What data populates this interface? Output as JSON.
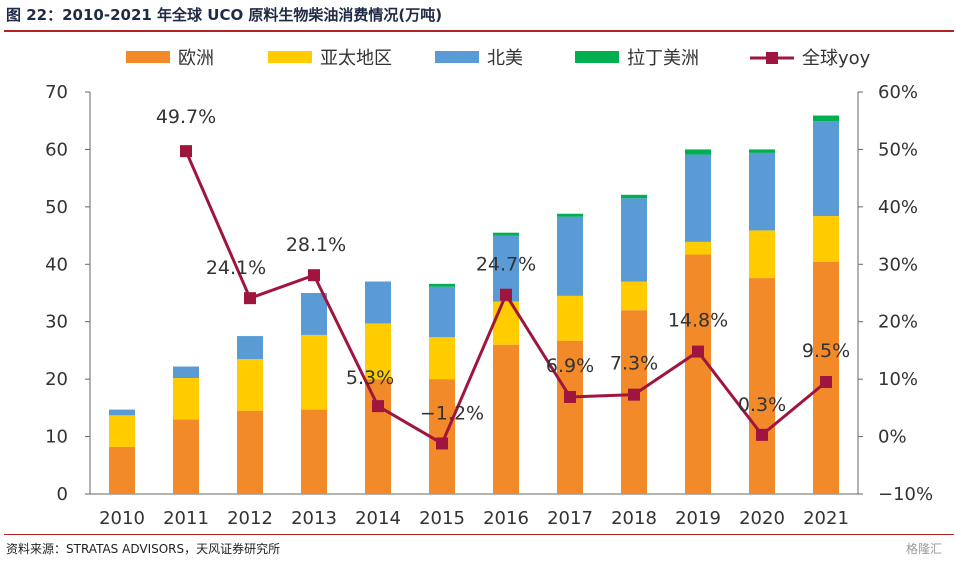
{
  "title": "图 22：2010-2021 年全球 UCO 原料生物柴油消费情况(万吨)",
  "source": "资料来源：STRATAS ADVISORS，天风证券研究所",
  "watermark": "格隆汇",
  "colors": {
    "europe": "#F28A2A",
    "asia_pacific": "#FFCC00",
    "north_america": "#5B9BD5",
    "latin_america": "#00B050",
    "yoy": "#A0153E",
    "rule": "#b22222"
  },
  "chart_data": {
    "type": "bar",
    "stacked": true,
    "categories": [
      "2010",
      "2011",
      "2012",
      "2013",
      "2014",
      "2015",
      "2016",
      "2017",
      "2018",
      "2019",
      "2020",
      "2021"
    ],
    "series": [
      {
        "name": "欧洲",
        "values": [
          8.2,
          13.0,
          14.5,
          14.7,
          20.0,
          20.0,
          26.0,
          26.7,
          32.0,
          41.7,
          37.6,
          40.4
        ]
      },
      {
        "name": "亚太地区",
        "values": [
          5.5,
          7.2,
          9.0,
          13.0,
          9.7,
          7.3,
          7.5,
          7.8,
          5.0,
          2.2,
          8.3,
          8.0
        ]
      },
      {
        "name": "北美",
        "values": [
          1.0,
          2.0,
          4.0,
          7.3,
          7.3,
          8.8,
          11.5,
          13.8,
          14.5,
          15.2,
          13.5,
          16.5
        ]
      },
      {
        "name": "拉丁美洲",
        "values": [
          0.0,
          0.0,
          0.0,
          0.0,
          0.0,
          0.5,
          0.5,
          0.5,
          0.6,
          0.9,
          0.6,
          1.0
        ]
      }
    ],
    "line_series": {
      "name": "全球yoy",
      "values": [
        null,
        49.7,
        24.1,
        28.1,
        5.3,
        -1.2,
        24.7,
        6.9,
        7.3,
        14.8,
        0.3,
        9.5
      ],
      "labels": [
        "",
        "49.7%",
        "24.1%",
        "28.1%",
        "5.3%",
        "−1.2%",
        "24.7%",
        "6.9%",
        "7.3%",
        "14.8%",
        "0.3%",
        "9.5%"
      ]
    },
    "left_axis": {
      "ylim": [
        0,
        70
      ],
      "ticks": [
        "0",
        "10",
        "20",
        "30",
        "40",
        "50",
        "60",
        "70"
      ]
    },
    "right_axis": {
      "ylim": [
        -10,
        60
      ],
      "ticks": [
        "−10%",
        "0%",
        "10%",
        "20%",
        "30%",
        "40%",
        "50%",
        "60%"
      ]
    },
    "legend_position": "top",
    "grid": false
  }
}
